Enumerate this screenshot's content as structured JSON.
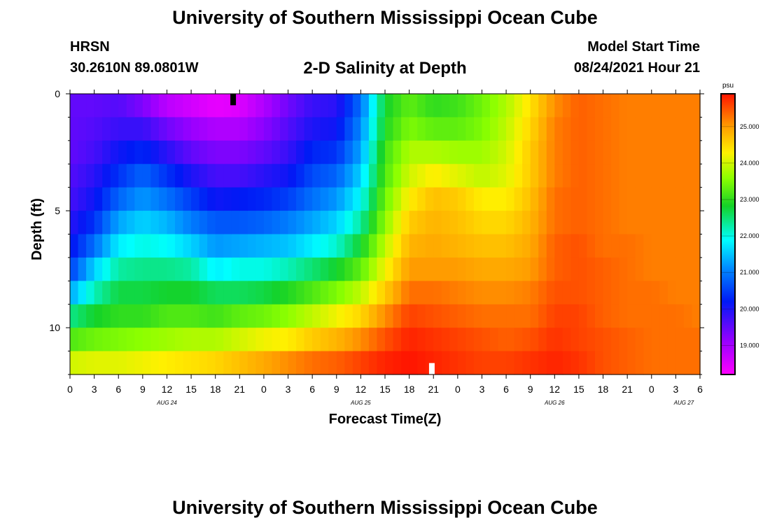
{
  "header": {
    "title": "University of Southern Mississippi Ocean Cube",
    "station": "HRSN",
    "coords": "30.2610N  89.0801W",
    "subtitle": "2-D Salinity at Depth",
    "model_start_label": "Model Start Time",
    "model_start_value": "08/24/2021 Hour 21"
  },
  "footer": {
    "title": "University of Southern Mississippi Ocean Cube"
  },
  "chart_data": {
    "type": "heatmap",
    "title": "2-D Salinity at Depth",
    "xlabel": "Forecast Time(Z)",
    "ylabel": "Depth (ft)",
    "x_tick_labels": [
      "0",
      "3",
      "6",
      "9",
      "12",
      "15",
      "18",
      "21",
      "0",
      "3",
      "6",
      "9",
      "12",
      "15",
      "18",
      "21",
      "0",
      "3",
      "6",
      "9",
      "12",
      "15",
      "18",
      "21",
      "0",
      "3",
      "6"
    ],
    "x_range_hours": [
      0,
      78
    ],
    "date_labels": [
      {
        "label": "AUG 24",
        "hour": 12
      },
      {
        "label": "AUG 25",
        "hour": 36
      },
      {
        "label": "AUG 26",
        "hour": 60
      },
      {
        "label": "AUG 27",
        "hour": 76
      }
    ],
    "y_tick_labels": [
      "0",
      "5",
      "10"
    ],
    "y_tick_values": [
      0,
      5,
      10
    ],
    "ylim_ft": [
      0,
      12
    ],
    "depth_levels_ft": [
      0.5,
      1.5,
      2.5,
      3.5,
      4.5,
      5.5,
      6.5,
      7.5,
      8.5,
      9.5,
      10.5,
      11.5
    ],
    "colorbar": {
      "unit": "psu",
      "min": 18.2,
      "max": 25.9,
      "ticks": [
        "19.000",
        "20.000",
        "21.000",
        "22.000",
        "23.000",
        "24.000",
        "25.000"
      ],
      "tick_values": [
        19,
        20,
        21,
        22,
        23,
        24,
        25
      ]
    },
    "markers": [
      {
        "hour": 20.2,
        "depth_ft": 0.25,
        "color": "#000000"
      },
      {
        "hour": 44.8,
        "depth_ft": 11.75,
        "color": "#ffffff"
      }
    ],
    "series": [
      {
        "hour": 0,
        "values": [
          19.5,
          19.5,
          19.5,
          19.6,
          19.7,
          19.9,
          20.1,
          20.5,
          21.3,
          22.4,
          23.2,
          24.0
        ]
      },
      {
        "hour": 3,
        "values": [
          19.5,
          19.6,
          19.7,
          19.9,
          20.1,
          20.4,
          20.9,
          21.6,
          22.2,
          22.8,
          23.4,
          24.1
        ]
      },
      {
        "hour": 6,
        "values": [
          19.6,
          19.8,
          20.1,
          20.4,
          20.8,
          21.3,
          21.8,
          22.3,
          22.7,
          23.0,
          23.5,
          24.1
        ]
      },
      {
        "hour": 9,
        "values": [
          19.3,
          19.8,
          20.3,
          20.8,
          21.2,
          21.6,
          22.0,
          22.4,
          22.7,
          23.0,
          23.6,
          24.2
        ]
      },
      {
        "hour": 12,
        "values": [
          18.8,
          19.4,
          19.9,
          20.4,
          20.9,
          21.4,
          21.9,
          22.4,
          22.8,
          23.2,
          23.7,
          24.3
        ]
      },
      {
        "hour": 15,
        "values": [
          18.6,
          19.1,
          19.5,
          20.0,
          20.5,
          21.0,
          21.6,
          22.3,
          22.8,
          23.2,
          23.8,
          24.4
        ]
      },
      {
        "hour": 18,
        "values": [
          18.4,
          18.9,
          19.3,
          19.7,
          20.1,
          20.7,
          21.2,
          21.8,
          22.6,
          23.1,
          23.8,
          24.5
        ]
      },
      {
        "hour": 21,
        "values": [
          18.5,
          18.9,
          19.3,
          19.7,
          20.2,
          20.7,
          21.3,
          22.0,
          22.6,
          23.3,
          24.0,
          24.7
        ]
      },
      {
        "hour": 24,
        "values": [
          18.9,
          19.2,
          19.5,
          19.9,
          20.3,
          20.8,
          21.4,
          22.0,
          22.7,
          23.4,
          24.2,
          24.9
        ]
      },
      {
        "hour": 27,
        "values": [
          19.4,
          19.6,
          19.8,
          20.1,
          20.5,
          21.0,
          21.5,
          22.2,
          22.9,
          23.6,
          24.3,
          25.1
        ]
      },
      {
        "hour": 30,
        "values": [
          19.8,
          20.0,
          20.3,
          20.6,
          20.9,
          21.3,
          21.8,
          22.5,
          23.2,
          23.9,
          24.6,
          25.3
        ]
      },
      {
        "hour": 33,
        "values": [
          19.9,
          20.1,
          20.4,
          20.8,
          21.2,
          21.6,
          22.1,
          22.8,
          23.5,
          24.2,
          24.8,
          25.4
        ]
      },
      {
        "hour": 36,
        "values": [
          20.9,
          21.1,
          21.3,
          21.6,
          21.9,
          22.3,
          22.8,
          23.3,
          23.9,
          24.5,
          25.1,
          25.6
        ]
      },
      {
        "hour": 39,
        "values": [
          22.8,
          22.9,
          23.1,
          23.2,
          23.4,
          23.6,
          23.9,
          24.2,
          24.6,
          25.1,
          25.5,
          25.8
        ]
      },
      {
        "hour": 42,
        "values": [
          23.3,
          23.5,
          23.8,
          24.0,
          24.3,
          24.6,
          24.8,
          25.0,
          25.3,
          25.6,
          25.8,
          25.9
        ]
      },
      {
        "hour": 45,
        "values": [
          23.0,
          23.3,
          23.8,
          24.3,
          24.7,
          24.8,
          24.9,
          25.0,
          25.3,
          25.5,
          25.7,
          25.8
        ]
      },
      {
        "hour": 48,
        "values": [
          23.1,
          23.3,
          23.7,
          24.1,
          24.6,
          24.7,
          24.8,
          25.0,
          25.2,
          25.4,
          25.6,
          25.7
        ]
      },
      {
        "hour": 51,
        "values": [
          23.4,
          23.5,
          23.7,
          23.9,
          24.3,
          24.5,
          24.7,
          24.9,
          25.1,
          25.3,
          25.5,
          25.6
        ]
      },
      {
        "hour": 54,
        "values": [
          23.8,
          23.9,
          24.0,
          24.1,
          24.3,
          24.5,
          24.7,
          24.9,
          25.1,
          25.3,
          25.4,
          25.6
        ]
      },
      {
        "hour": 57,
        "values": [
          24.4,
          24.5,
          24.6,
          24.6,
          24.7,
          24.8,
          24.9,
          25.0,
          25.2,
          25.3,
          25.5,
          25.7
        ]
      },
      {
        "hour": 60,
        "values": [
          25.1,
          25.2,
          25.2,
          25.2,
          25.3,
          25.3,
          25.4,
          25.4,
          25.5,
          25.6,
          25.7,
          25.8
        ]
      },
      {
        "hour": 63,
        "values": [
          25.4,
          25.4,
          25.4,
          25.4,
          25.4,
          25.4,
          25.5,
          25.5,
          25.5,
          25.6,
          25.6,
          25.7
        ]
      },
      {
        "hour": 66,
        "values": [
          25.3,
          25.3,
          25.3,
          25.3,
          25.3,
          25.3,
          25.3,
          25.4,
          25.4,
          25.4,
          25.5,
          25.5
        ]
      },
      {
        "hour": 69,
        "values": [
          25.2,
          25.2,
          25.2,
          25.2,
          25.2,
          25.2,
          25.3,
          25.3,
          25.3,
          25.3,
          25.4,
          25.4
        ]
      },
      {
        "hour": 72,
        "values": [
          25.2,
          25.2,
          25.2,
          25.2,
          25.2,
          25.2,
          25.2,
          25.2,
          25.3,
          25.3,
          25.3,
          25.3
        ]
      },
      {
        "hour": 75,
        "values": [
          25.2,
          25.2,
          25.2,
          25.2,
          25.2,
          25.2,
          25.2,
          25.2,
          25.2,
          25.3,
          25.3,
          25.3
        ]
      },
      {
        "hour": 78,
        "values": [
          25.2,
          25.2,
          25.2,
          25.2,
          25.2,
          25.2,
          25.2,
          25.2,
          25.2,
          25.2,
          25.3,
          25.3
        ]
      }
    ]
  }
}
